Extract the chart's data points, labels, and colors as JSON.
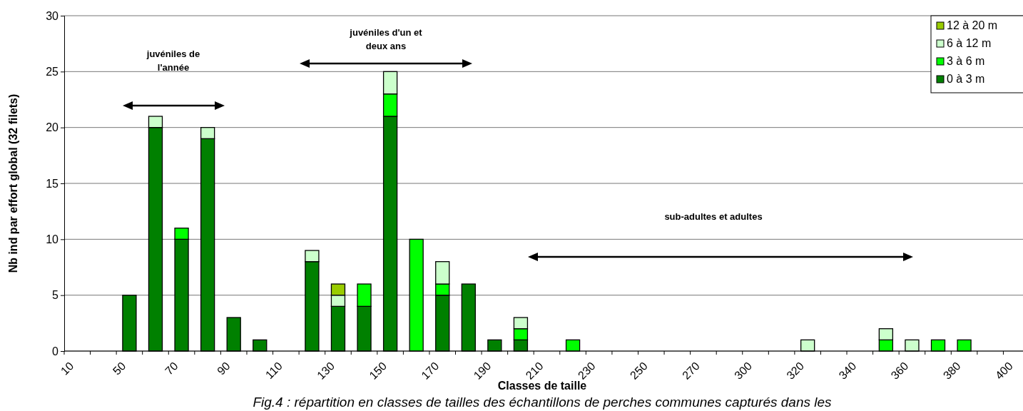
{
  "chart_data": {
    "type": "bar",
    "stacked": true,
    "title": "Fig.4 : répartition en classes de tailles des échantillons de perches communes capturés dans les",
    "xlabel": "Classes de taille",
    "ylabel": "Nb ind par effort global (32 filets)",
    "categories": [
      "10",
      null,
      "50",
      null,
      "70",
      null,
      "90",
      null,
      "110",
      null,
      "130",
      null,
      "150",
      null,
      "170",
      null,
      "190",
      null,
      "210",
      null,
      "230",
      null,
      "250",
      null,
      "270",
      null,
      "300",
      null,
      "320",
      null,
      "340",
      null,
      "360",
      null,
      "380",
      null,
      "400"
    ],
    "series": [
      {
        "name": "0 à  3 m",
        "color": "#008000",
        "values": [
          0,
          0,
          5,
          20,
          10,
          19,
          3,
          1,
          0,
          8,
          4,
          4,
          21,
          0,
          5,
          6,
          1,
          1,
          0,
          0,
          0,
          0,
          0,
          0,
          0,
          0,
          0,
          0,
          0,
          0,
          0,
          0,
          0,
          0,
          0,
          0,
          0
        ]
      },
      {
        "name": "3 à 6 m",
        "color": "#00ff00",
        "values": [
          0,
          0,
          0,
          0,
          1,
          0,
          0,
          0,
          0,
          0,
          0,
          2,
          2,
          10,
          1,
          0,
          0,
          1,
          0,
          1,
          0,
          0,
          0,
          0,
          0,
          0,
          0,
          0,
          0,
          0,
          0,
          1,
          0,
          1,
          1,
          0,
          0
        ]
      },
      {
        "name": "6 à 12 m",
        "color": "#ccffcc",
        "values": [
          0,
          0,
          0,
          1,
          0,
          1,
          0,
          0,
          0,
          1,
          1,
          0,
          2,
          0,
          2,
          0,
          0,
          1,
          0,
          0,
          0,
          0,
          0,
          0,
          0,
          0,
          0,
          0,
          1,
          0,
          0,
          1,
          1,
          0,
          0,
          0,
          0
        ]
      },
      {
        "name": "12 à 20 m",
        "color": "#99cc00",
        "values": [
          0,
          0,
          0,
          0,
          0,
          0,
          0,
          0,
          0,
          0,
          1,
          0,
          0,
          0,
          0,
          0,
          0,
          0,
          0,
          0,
          0,
          0,
          0,
          0,
          0,
          0,
          0,
          0,
          0,
          0,
          0,
          0,
          0,
          0,
          0,
          0,
          0
        ]
      }
    ],
    "ylim": [
      0,
      30
    ],
    "yticks": [
      0,
      5,
      10,
      15,
      20,
      25,
      30
    ],
    "grid": "y",
    "legend": "top right",
    "annotations": [
      "juvéniles de l'année",
      "juvéniles d'un et deux ans",
      "sub-adultes et adultes"
    ]
  }
}
